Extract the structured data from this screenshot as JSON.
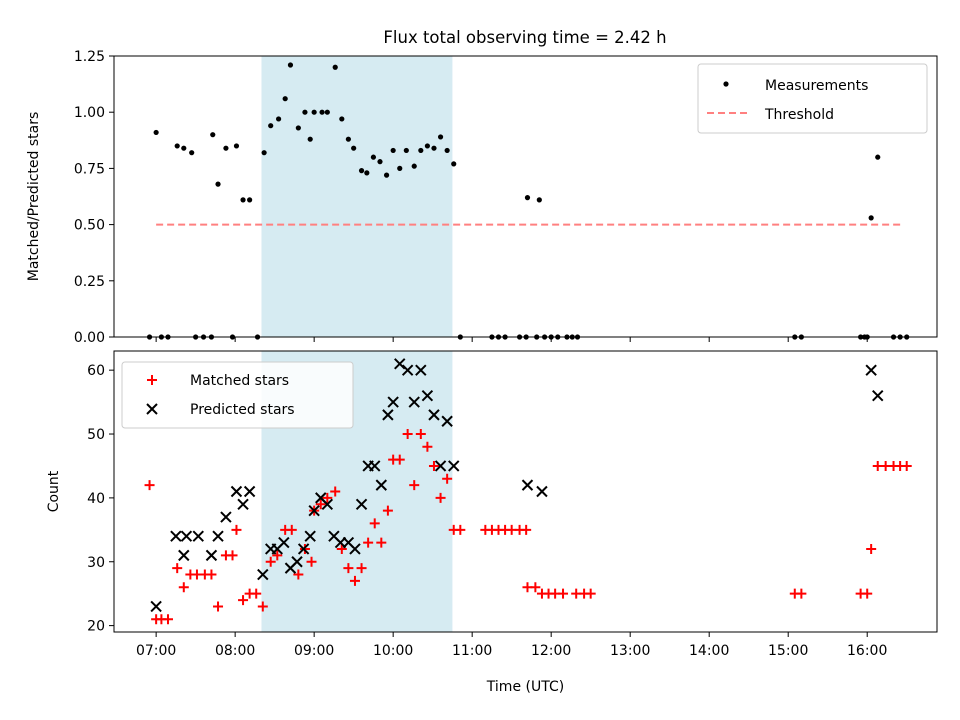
{
  "title": "Flux total observing time = 2.42 h",
  "chart_data": [
    {
      "type": "scatter",
      "ylabel": "Matched/Predicted stars",
      "xlabel": "",
      "xlim": [
        "06:28",
        "16:53"
      ],
      "ylim": [
        0,
        1.25
      ],
      "x_ticks": [
        "07:00",
        "08:00",
        "09:00",
        "10:00",
        "11:00",
        "12:00",
        "13:00",
        "14:00",
        "15:00",
        "16:00"
      ],
      "y_ticks": [
        "0.00",
        "0.25",
        "0.50",
        "0.75",
        "1.00",
        "1.25"
      ],
      "shaded_interval": [
        "08:20",
        "10:45"
      ],
      "shaded_color": "#add8e6",
      "legend": {
        "placement": "top-right",
        "entries": [
          "Measurements",
          "Threshold"
        ]
      },
      "threshold": {
        "name": "Threshold",
        "value": 0.5,
        "x": [
          "07:00",
          "16:27"
        ],
        "color": "#ff8080",
        "style": "dashed"
      },
      "series": [
        {
          "name": "Measurements",
          "color": "#000000",
          "marker": "dot",
          "points": [
            [
              "06:55",
              0.0
            ],
            [
              "07:00",
              0.91
            ],
            [
              "07:04",
              0.0
            ],
            [
              "07:09",
              0.0
            ],
            [
              "07:16",
              0.85
            ],
            [
              "07:21",
              0.84
            ],
            [
              "07:27",
              0.82
            ],
            [
              "07:30",
              0.0
            ],
            [
              "07:36",
              0.0
            ],
            [
              "07:42",
              0.0
            ],
            [
              "07:43",
              0.9
            ],
            [
              "07:47",
              0.68
            ],
            [
              "07:53",
              0.84
            ],
            [
              "07:58",
              0.0
            ],
            [
              "08:01",
              0.85
            ],
            [
              "08:06",
              0.61
            ],
            [
              "08:11",
              0.61
            ],
            [
              "08:17",
              0.0
            ],
            [
              "08:22",
              0.82
            ],
            [
              "08:27",
              0.94
            ],
            [
              "08:33",
              0.97
            ],
            [
              "08:38",
              1.06
            ],
            [
              "08:42",
              1.21
            ],
            [
              "08:48",
              0.93
            ],
            [
              "08:53",
              1.0
            ],
            [
              "08:57",
              0.88
            ],
            [
              "09:00",
              1.0
            ],
            [
              "09:06",
              1.0
            ],
            [
              "09:10",
              1.0
            ],
            [
              "09:16",
              1.2
            ],
            [
              "09:21",
              0.97
            ],
            [
              "09:26",
              0.88
            ],
            [
              "09:30",
              0.84
            ],
            [
              "09:36",
              0.74
            ],
            [
              "09:40",
              0.73
            ],
            [
              "09:45",
              0.8
            ],
            [
              "09:50",
              0.78
            ],
            [
              "09:55",
              0.72
            ],
            [
              "10:00",
              0.83
            ],
            [
              "10:05",
              0.75
            ],
            [
              "10:10",
              0.83
            ],
            [
              "10:16",
              0.76
            ],
            [
              "10:21",
              0.83
            ],
            [
              "10:26",
              0.85
            ],
            [
              "10:31",
              0.84
            ],
            [
              "10:36",
              0.89
            ],
            [
              "10:41",
              0.83
            ],
            [
              "10:46",
              0.77
            ],
            [
              "10:51",
              0.0
            ],
            [
              "11:15",
              0.0
            ],
            [
              "11:20",
              0.0
            ],
            [
              "11:25",
              0.0
            ],
            [
              "11:36",
              0.0
            ],
            [
              "11:41",
              0.0
            ],
            [
              "11:42",
              0.62
            ],
            [
              "11:49",
              0.0
            ],
            [
              "11:51",
              0.61
            ],
            [
              "11:55",
              0.0
            ],
            [
              "12:00",
              0.0
            ],
            [
              "12:05",
              0.0
            ],
            [
              "12:12",
              0.0
            ],
            [
              "12:16",
              0.0
            ],
            [
              "12:20",
              0.0
            ],
            [
              "15:05",
              0.0
            ],
            [
              "15:10",
              0.0
            ],
            [
              "15:55",
              0.0
            ],
            [
              "15:58",
              0.0
            ],
            [
              "16:00",
              0.0
            ],
            [
              "16:03",
              0.53
            ],
            [
              "16:08",
              0.8
            ],
            [
              "16:20",
              0.0
            ],
            [
              "16:25",
              0.0
            ],
            [
              "16:30",
              0.0
            ]
          ]
        }
      ]
    },
    {
      "type": "scatter",
      "ylabel": "Count",
      "xlabel": "Time (UTC)",
      "xlim": [
        "06:28",
        "16:53"
      ],
      "ylim": [
        19,
        63
      ],
      "x_ticks": [
        "07:00",
        "08:00",
        "09:00",
        "10:00",
        "11:00",
        "12:00",
        "13:00",
        "14:00",
        "15:00",
        "16:00"
      ],
      "y_ticks": [
        "20",
        "30",
        "40",
        "50",
        "60"
      ],
      "shaded_interval": [
        "08:20",
        "10:45"
      ],
      "shaded_color": "#add8e6",
      "legend": {
        "placement": "top-left",
        "entries": [
          "Matched stars",
          "Predicted stars"
        ]
      },
      "series": [
        {
          "name": "Matched stars",
          "color": "#ff0000",
          "marker": "plus",
          "points": [
            [
              "06:55",
              42
            ],
            [
              "07:00",
              21
            ],
            [
              "07:04",
              21
            ],
            [
              "07:09",
              21
            ],
            [
              "07:16",
              29
            ],
            [
              "07:21",
              26
            ],
            [
              "07:26",
              28
            ],
            [
              "07:31",
              28
            ],
            [
              "07:37",
              28
            ],
            [
              "07:42",
              28
            ],
            [
              "07:47",
              23
            ],
            [
              "07:53",
              31
            ],
            [
              "07:58",
              31
            ],
            [
              "08:01",
              35
            ],
            [
              "08:06",
              24
            ],
            [
              "08:11",
              25
            ],
            [
              "08:16",
              25
            ],
            [
              "08:21",
              23
            ],
            [
              "08:27",
              30
            ],
            [
              "08:32",
              31
            ],
            [
              "08:38",
              35
            ],
            [
              "08:43",
              35
            ],
            [
              "08:48",
              28
            ],
            [
              "08:53",
              32
            ],
            [
              "08:58",
              30
            ],
            [
              "09:00",
              38
            ],
            [
              "09:05",
              39
            ],
            [
              "09:10",
              40
            ],
            [
              "09:16",
              41
            ],
            [
              "09:21",
              32
            ],
            [
              "09:26",
              29
            ],
            [
              "09:31",
              27
            ],
            [
              "09:36",
              29
            ],
            [
              "09:41",
              33
            ],
            [
              "09:46",
              36
            ],
            [
              "09:51",
              33
            ],
            [
              "09:56",
              38
            ],
            [
              "10:00",
              46
            ],
            [
              "10:05",
              46
            ],
            [
              "10:11",
              50
            ],
            [
              "10:16",
              42
            ],
            [
              "10:21",
              50
            ],
            [
              "10:26",
              48
            ],
            [
              "10:31",
              45
            ],
            [
              "10:36",
              40
            ],
            [
              "10:41",
              43
            ],
            [
              "10:46",
              35
            ],
            [
              "10:51",
              35
            ],
            [
              "11:10",
              35
            ],
            [
              "11:15",
              35
            ],
            [
              "11:20",
              35
            ],
            [
              "11:25",
              35
            ],
            [
              "11:30",
              35
            ],
            [
              "11:36",
              35
            ],
            [
              "11:41",
              35
            ],
            [
              "11:42",
              26
            ],
            [
              "11:48",
              26
            ],
            [
              "11:53",
              25
            ],
            [
              "11:58",
              25
            ],
            [
              "12:03",
              25
            ],
            [
              "12:09",
              25
            ],
            [
              "12:19",
              25
            ],
            [
              "12:25",
              25
            ],
            [
              "12:30",
              25
            ],
            [
              "15:05",
              25
            ],
            [
              "15:10",
              25
            ],
            [
              "15:55",
              25
            ],
            [
              "16:00",
              25
            ],
            [
              "16:03",
              32
            ],
            [
              "16:08",
              45
            ],
            [
              "16:14",
              45
            ],
            [
              "16:20",
              45
            ],
            [
              "16:25",
              45
            ],
            [
              "16:30",
              45
            ]
          ]
        },
        {
          "name": "Predicted stars",
          "color": "#000000",
          "marker": "x",
          "points": [
            [
              "07:00",
              23
            ],
            [
              "07:15",
              34
            ],
            [
              "07:21",
              31
            ],
            [
              "07:23",
              34
            ],
            [
              "07:32",
              34
            ],
            [
              "07:42",
              31
            ],
            [
              "07:47",
              34
            ],
            [
              "07:53",
              37
            ],
            [
              "08:01",
              41
            ],
            [
              "08:06",
              39
            ],
            [
              "08:11",
              41
            ],
            [
              "08:21",
              28
            ],
            [
              "08:27",
              32
            ],
            [
              "08:32",
              32
            ],
            [
              "08:37",
              33
            ],
            [
              "08:42",
              29
            ],
            [
              "08:47",
              30
            ],
            [
              "08:52",
              32
            ],
            [
              "08:57",
              34
            ],
            [
              "09:00",
              38
            ],
            [
              "09:05",
              40
            ],
            [
              "09:10",
              39
            ],
            [
              "09:15",
              34
            ],
            [
              "09:20",
              33
            ],
            [
              "09:26",
              33
            ],
            [
              "09:31",
              32
            ],
            [
              "09:36",
              39
            ],
            [
              "09:41",
              45
            ],
            [
              "09:46",
              45
            ],
            [
              "09:51",
              42
            ],
            [
              "09:56",
              53
            ],
            [
              "10:00",
              55
            ],
            [
              "10:05",
              61
            ],
            [
              "10:11",
              60
            ],
            [
              "10:16",
              55
            ],
            [
              "10:21",
              60
            ],
            [
              "10:26",
              56
            ],
            [
              "10:31",
              53
            ],
            [
              "10:36",
              45
            ],
            [
              "10:41",
              52
            ],
            [
              "10:46",
              45
            ],
            [
              "11:42",
              42
            ],
            [
              "11:53",
              41
            ],
            [
              "16:03",
              60
            ],
            [
              "16:08",
              56
            ]
          ]
        }
      ]
    }
  ]
}
